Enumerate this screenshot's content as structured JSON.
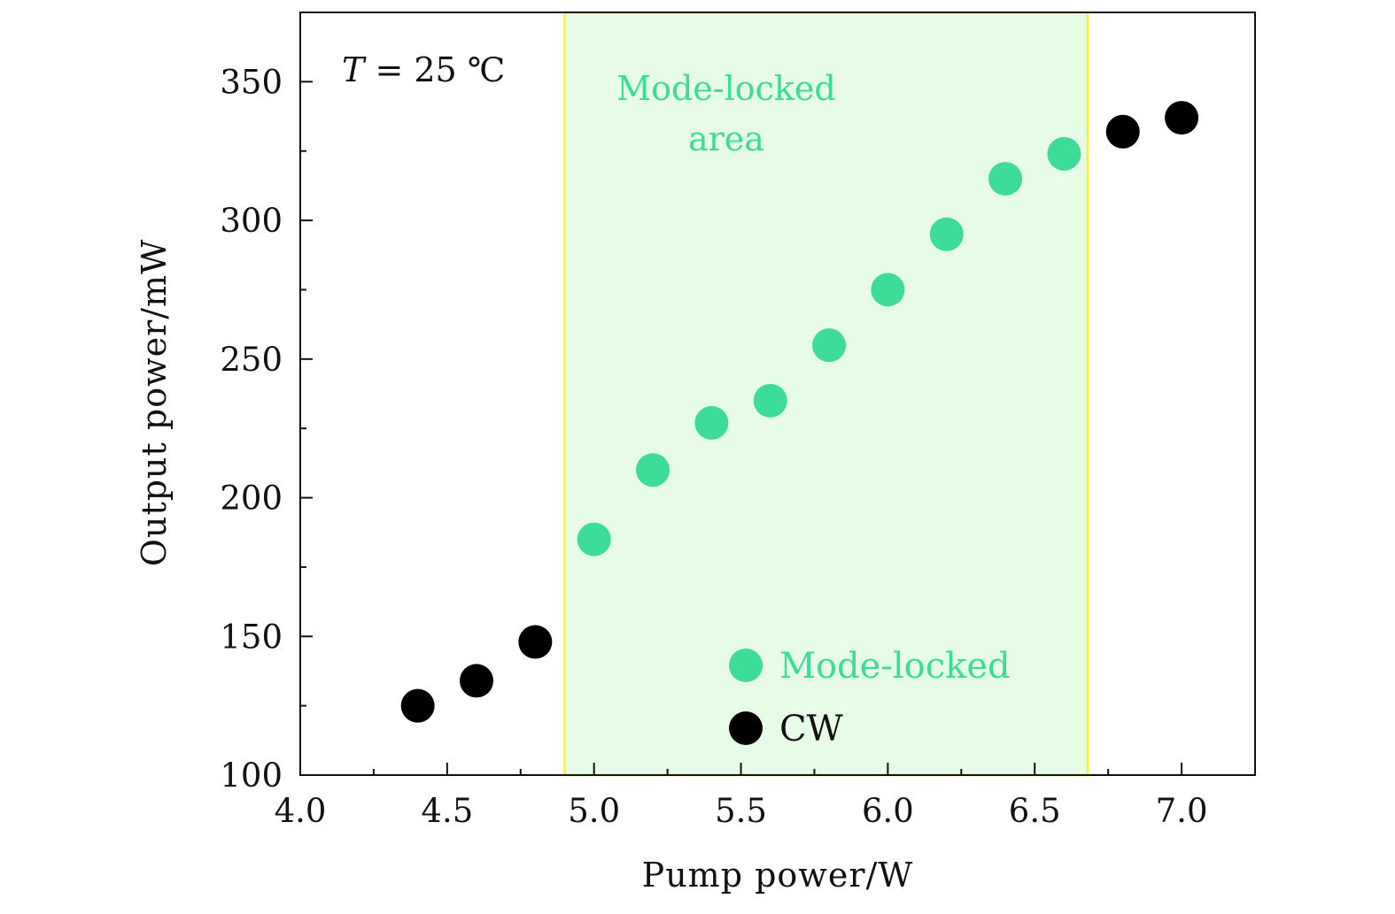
{
  "chart_data": {
    "type": "scatter",
    "title": "",
    "xlabel": "Pump power/W",
    "ylabel": "Output power/mW",
    "xlim": [
      4.0,
      7.25
    ],
    "ylim": [
      100,
      375
    ],
    "xticks": [
      "4.0",
      "4.5",
      "5.0",
      "5.5",
      "6.0",
      "6.5",
      "7.0"
    ],
    "yticks": [
      "100",
      "150",
      "200",
      "250",
      "300",
      "350"
    ],
    "grid": false,
    "legend_position": "bottom-center",
    "series": [
      {
        "name": "Mode-locked",
        "color": "#3ddc97",
        "x": [
          5.0,
          5.2,
          5.4,
          5.6,
          5.8,
          6.0,
          6.2,
          6.4,
          6.6
        ],
        "y": [
          185,
          210,
          227,
          235,
          255,
          275,
          295,
          315,
          324
        ]
      },
      {
        "name": "CW",
        "color": "#000000",
        "x": [
          4.4,
          4.6,
          4.8,
          6.8,
          7.0
        ],
        "y": [
          125,
          134,
          148,
          332,
          337
        ]
      }
    ],
    "shaded_region": {
      "x_range": [
        4.9,
        6.68
      ],
      "fill": "#e6fce6",
      "edge": "#f2f24a",
      "label_line1": "Mode-locked",
      "label_line2": "area",
      "label_color": "#3ddc97"
    },
    "annotations": {
      "temperature_var": "T",
      "temperature_rest": " = 25 ℃"
    }
  }
}
